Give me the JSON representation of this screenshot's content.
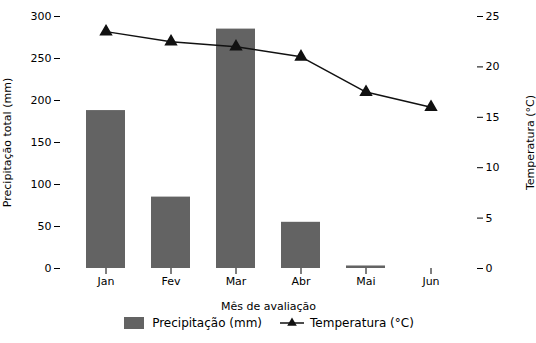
{
  "chart_data": {
    "type": "bar",
    "categories": [
      "Jan",
      "Fev",
      "Mar",
      "Abr",
      "Mai",
      "Jun"
    ],
    "xlabel": "Mês de avaliação",
    "ylabel": "Precipitação total (mm)",
    "y2label": "Temperatura (°C)",
    "ylim": [
      0,
      300
    ],
    "yticks": [
      0,
      50,
      100,
      150,
      200,
      250,
      300
    ],
    "y2lim": [
      0,
      25
    ],
    "y2ticks": [
      0,
      5,
      10,
      15,
      20,
      25
    ],
    "grid": false,
    "legend": "bottom",
    "series": [
      {
        "name": "Precipitação (mm)",
        "type": "bar",
        "color": "#636363",
        "values": [
          188,
          85,
          285,
          55,
          3,
          0
        ]
      },
      {
        "name": "Temperatura (°C)",
        "type": "line",
        "color": "#111111",
        "marker": "triangle",
        "axis": "y2",
        "values": [
          23.5,
          22.5,
          22.0,
          21.0,
          17.5,
          16.0
        ]
      }
    ]
  }
}
